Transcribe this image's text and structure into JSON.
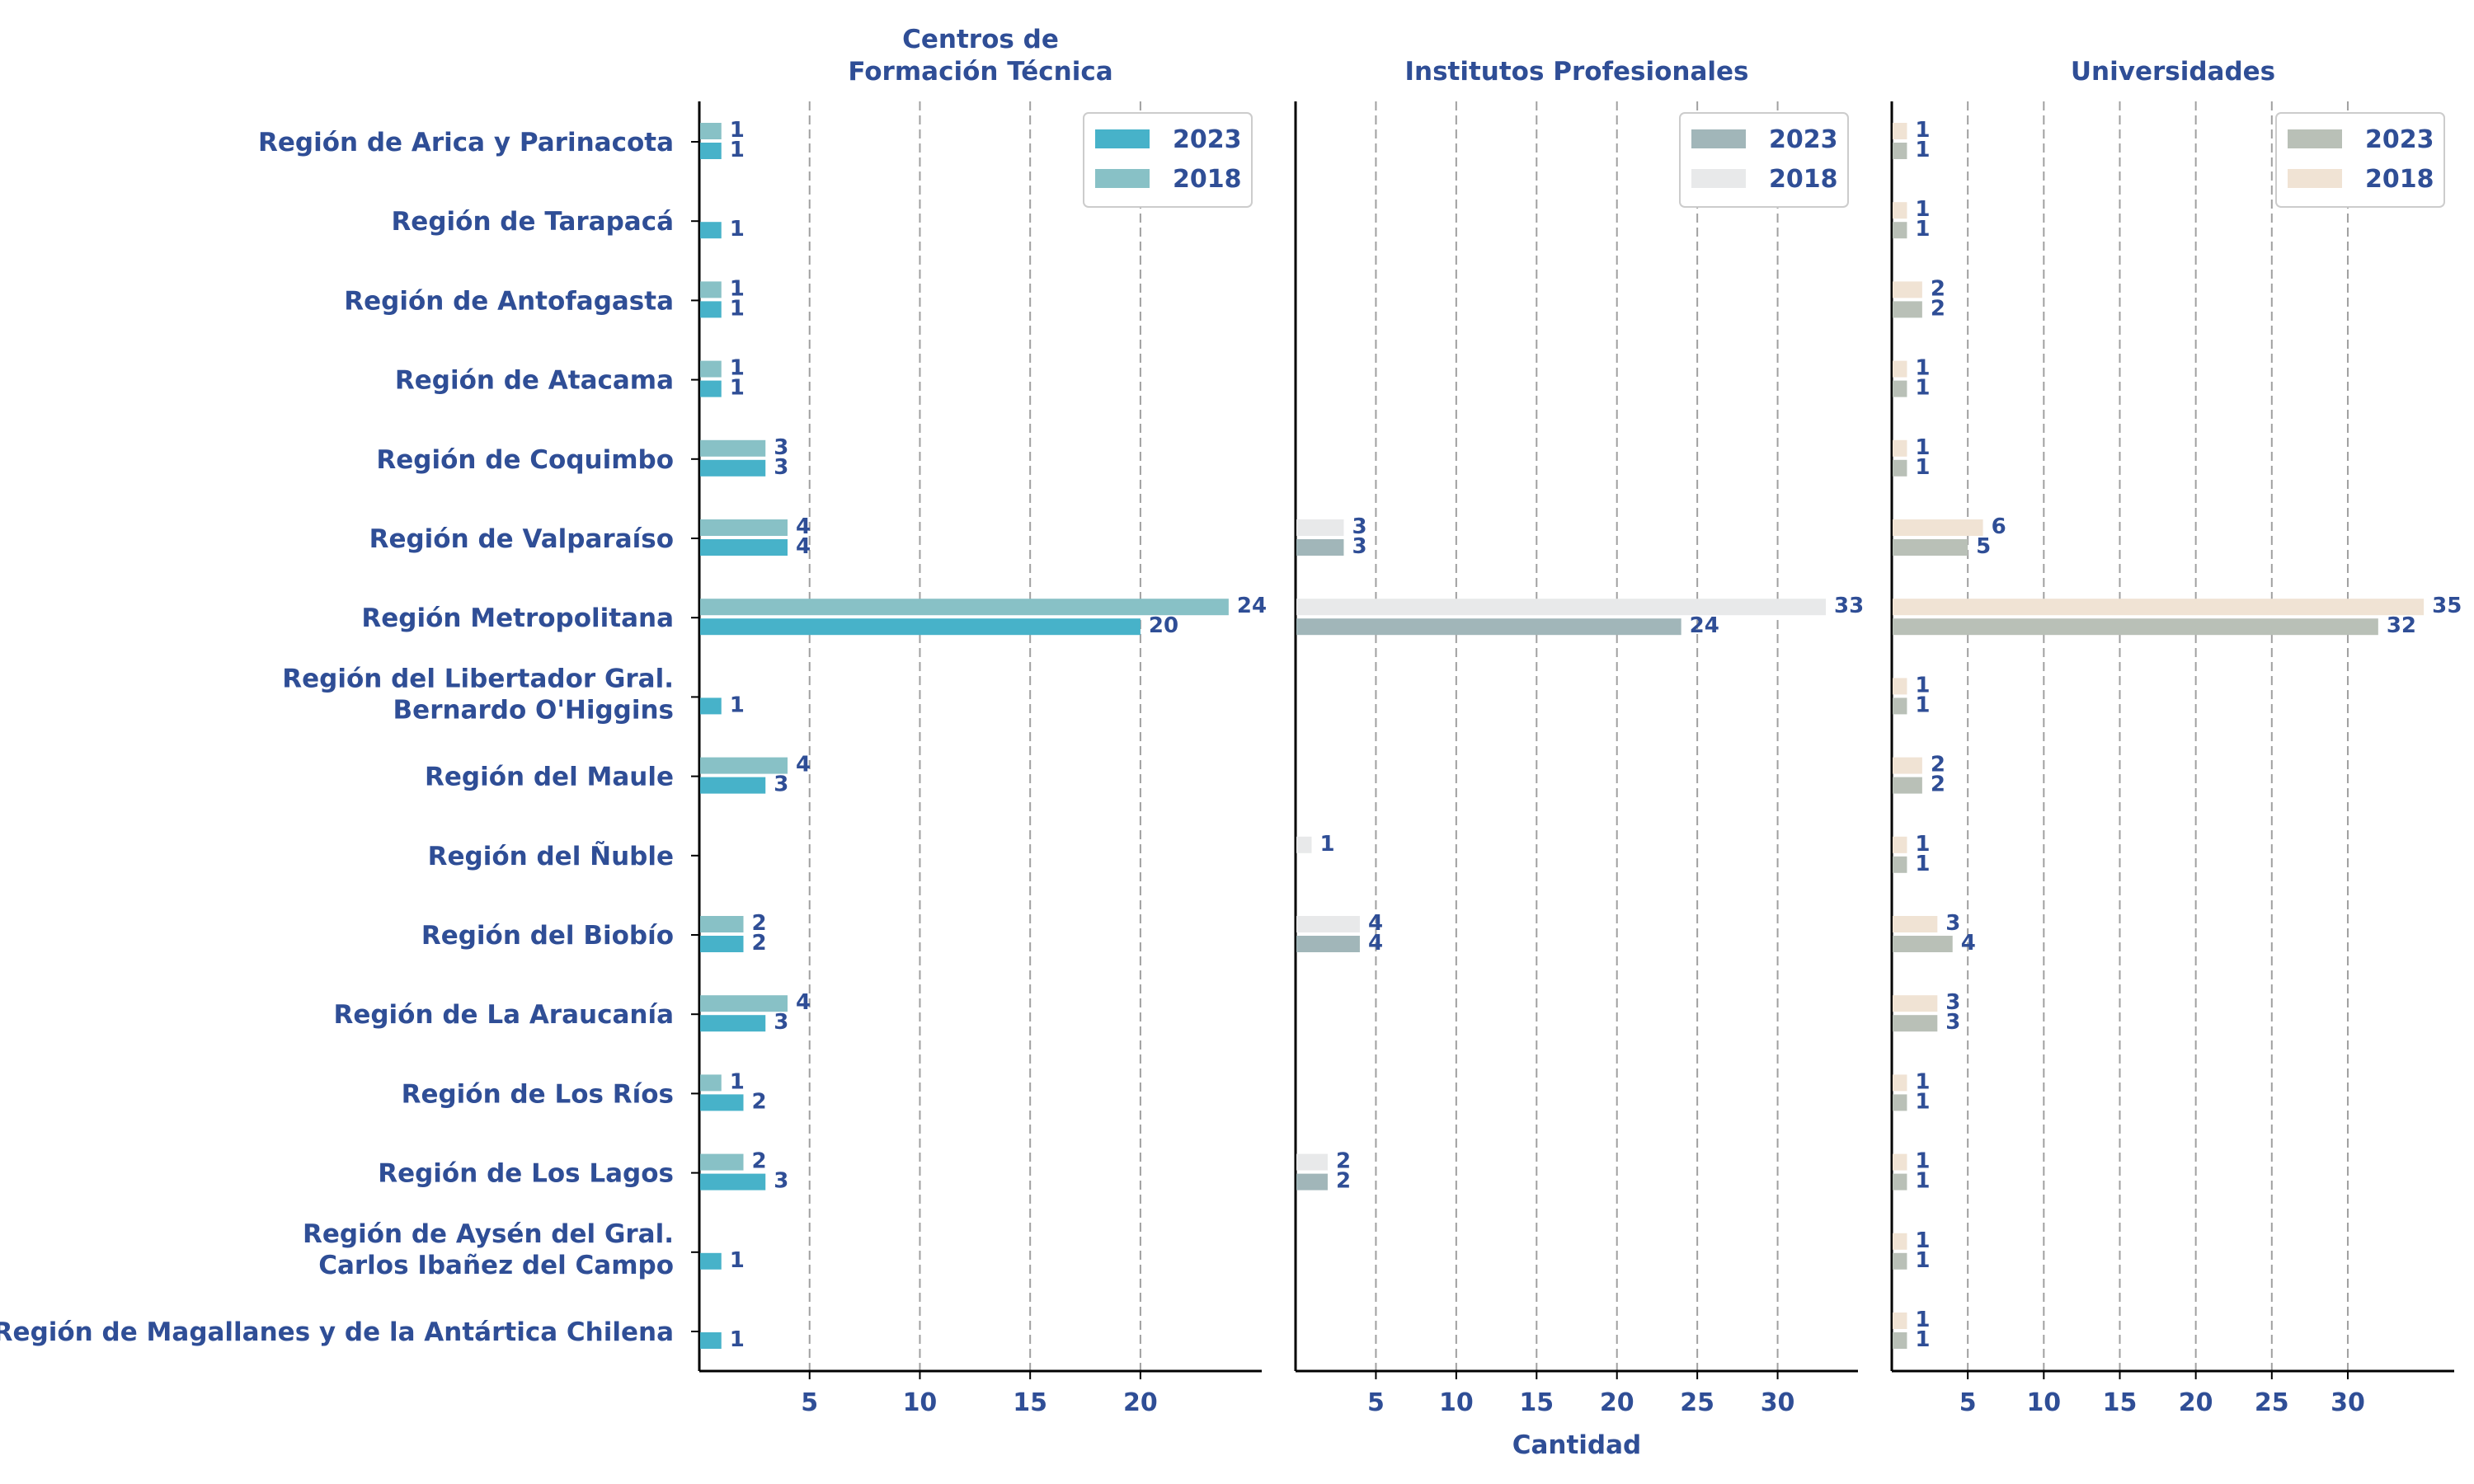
{
  "chart_data": [
    {
      "type": "bar",
      "orientation": "horizontal",
      "title": "Centros de\nFormación Técnica",
      "xlabel": "",
      "xlim": [
        0,
        25.5
      ],
      "xticks": [
        5,
        10,
        15,
        20
      ],
      "grid": "x-dashed",
      "legend": "top-right",
      "series": [
        {
          "name": "2023",
          "color": "#47b2c9",
          "values": [
            1,
            1,
            1,
            1,
            3,
            4,
            20,
            1,
            3,
            null,
            2,
            3,
            2,
            3,
            1,
            1
          ]
        },
        {
          "name": "2018",
          "color": "#88c1c6",
          "values": [
            1,
            null,
            1,
            1,
            3,
            4,
            24,
            null,
            4,
            null,
            2,
            4,
            1,
            2,
            null,
            null
          ]
        }
      ]
    },
    {
      "type": "bar",
      "orientation": "horizontal",
      "title": "Institutos Profesionales",
      "xlabel": "Cantidad",
      "xlim": [
        0,
        35
      ],
      "xticks": [
        5,
        10,
        15,
        20,
        25,
        30
      ],
      "grid": "x-dashed",
      "legend": "top-right",
      "series": [
        {
          "name": "2023",
          "color": "#a1b6b9",
          "values": [
            null,
            null,
            null,
            null,
            null,
            3,
            24,
            null,
            null,
            null,
            4,
            null,
            null,
            2,
            null,
            null
          ]
        },
        {
          "name": "2018",
          "color": "#e8e9ea",
          "values": [
            null,
            null,
            null,
            null,
            null,
            3,
            33,
            null,
            null,
            1,
            4,
            null,
            null,
            2,
            null,
            null
          ]
        }
      ]
    },
    {
      "type": "bar",
      "orientation": "horizontal",
      "title": "Universidades",
      "xlabel": "",
      "xlim": [
        0,
        37
      ],
      "xticks": [
        5,
        10,
        15,
        20,
        25,
        30
      ],
      "grid": "x-dashed",
      "legend": "top-right",
      "series": [
        {
          "name": "2023",
          "color": "#b9c0b7",
          "values": [
            1,
            1,
            2,
            1,
            1,
            5,
            32,
            1,
            2,
            1,
            4,
            3,
            1,
            1,
            1,
            1
          ]
        },
        {
          "name": "2018",
          "color": "#f0e3d4",
          "values": [
            1,
            1,
            2,
            1,
            1,
            6,
            35,
            1,
            2,
            1,
            3,
            3,
            1,
            1,
            1,
            1
          ]
        }
      ]
    }
  ],
  "categories": [
    "Región de Arica y Parinacota",
    "Región de Tarapacá",
    "Región de Antofagasta",
    "Región de Atacama",
    "Región de Coquimbo",
    "Región de Valparaíso",
    "Región Metropolitana",
    "Región del Libertador Gral.\nBernardo O'Higgins",
    "Región del Maule",
    "Región del Ñuble",
    "Región del Biobío",
    "Región de La Araucanía",
    "Región de Los Ríos",
    "Región de Los Lagos",
    "Región de Aysén del Gral.\nCarlos Ibañez del Campo",
    "Región de Magallanes y de la Antártica Chilena"
  ],
  "colors": {
    "text": "#2f4e96",
    "axis": "#000000",
    "grid": "#a0a0a0"
  }
}
